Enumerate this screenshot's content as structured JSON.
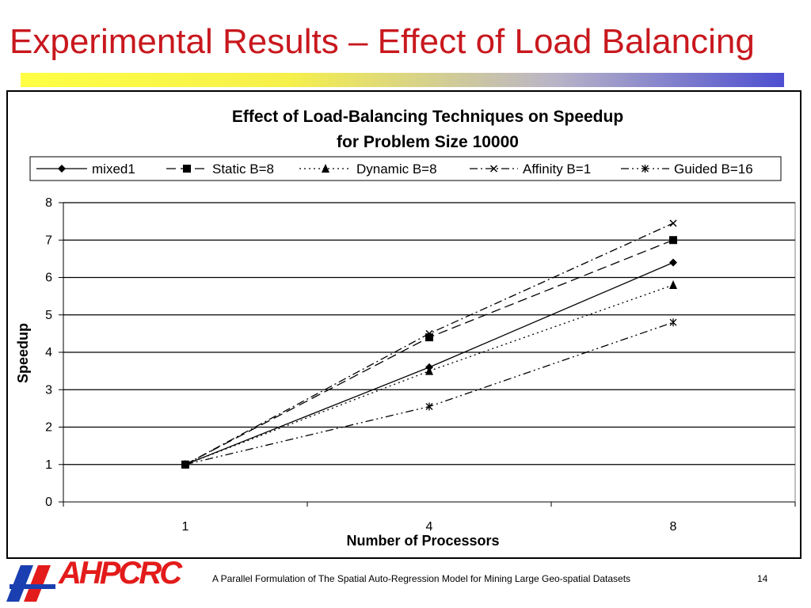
{
  "slide": {
    "title": "Experimental Results – Effect of Load Balancing",
    "footer": "A Parallel Formulation of The Spatial Auto-Regression Model for Mining Large Geo-spatial Datasets",
    "page_number": "14",
    "logo_text": "AHPCRC"
  },
  "colors": {
    "title": "#c8181e",
    "logo_red": "#e31b1b",
    "logo_blue": "#1a3fb0",
    "bar_yellow": "#ffff44",
    "bar_blue": "#4d4fd0"
  },
  "chart_data": {
    "type": "line",
    "title_line1": "Effect of Load-Balancing Techniques on Speedup",
    "title_line2": "for Problem Size 10000",
    "xlabel": "Number of Processors",
    "ylabel": "Speedup",
    "categories": [
      "1",
      "4",
      "8"
    ],
    "ylim": [
      0,
      8
    ],
    "yticks": [
      0,
      1,
      2,
      3,
      4,
      5,
      6,
      7,
      8
    ],
    "grid": true,
    "legend_position": "top",
    "series": [
      {
        "name": "mixed1",
        "values": [
          1.0,
          3.6,
          6.4
        ],
        "marker": "diamond",
        "dash": ""
      },
      {
        "name": "Static B=8",
        "values": [
          1.0,
          4.4,
          7.0
        ],
        "marker": "square",
        "dash": "12,6"
      },
      {
        "name": "Dynamic B=8",
        "values": [
          1.0,
          3.5,
          5.8
        ],
        "marker": "triangle",
        "dash": "2,4"
      },
      {
        "name": "Affinity B=1",
        "values": [
          1.0,
          4.5,
          7.45
        ],
        "marker": "x",
        "dash": "10,4,2,4"
      },
      {
        "name": "Guided B=16",
        "values": [
          1.0,
          2.55,
          4.8
        ],
        "marker": "star",
        "dash": "10,4,2,4,2,4"
      }
    ]
  }
}
